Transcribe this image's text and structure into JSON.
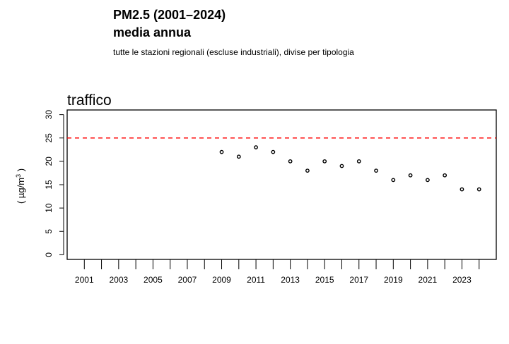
{
  "header": {
    "title_line1": "PM2.5 (2001–2024)",
    "title_line2": "media annua",
    "subtitle": "tutte le stazioni regionali (escluse industriali), divise per tipologia"
  },
  "panel": {
    "title": "traffico"
  },
  "chart_data": {
    "type": "scatter",
    "title": "traffico",
    "ylabel": "( µg/m³ )",
    "ylabel_main": "( µg/m",
    "ylabel_sup": "3",
    "ylabel_close": " )",
    "xlim": [
      2000,
      2025
    ],
    "ylim": [
      -1,
      31
    ],
    "yticks": [
      0,
      5,
      10,
      15,
      20,
      25,
      30
    ],
    "xticks_all": [
      2001,
      2002,
      2003,
      2004,
      2005,
      2006,
      2007,
      2008,
      2009,
      2010,
      2011,
      2012,
      2013,
      2014,
      2015,
      2016,
      2017,
      2018,
      2019,
      2020,
      2021,
      2022,
      2023,
      2024
    ],
    "xtick_labels": [
      2001,
      2003,
      2005,
      2007,
      2009,
      2011,
      2013,
      2015,
      2017,
      2019,
      2021,
      2023
    ],
    "reference_line": {
      "value": 25,
      "color": "#ff0000",
      "style": "dashed"
    },
    "x": [
      2009,
      2010,
      2011,
      2012,
      2013,
      2014,
      2015,
      2016,
      2017,
      2018,
      2019,
      2020,
      2021,
      2022,
      2023,
      2024
    ],
    "y": [
      22,
      21,
      23,
      22,
      20,
      18,
      20,
      19,
      20,
      18,
      16,
      17,
      16,
      17,
      14,
      14
    ],
    "grid": false,
    "marker": "open-circle"
  }
}
